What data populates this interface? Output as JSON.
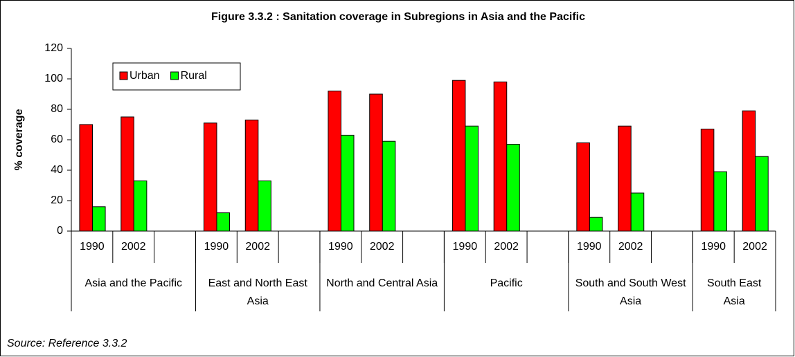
{
  "chart_data": {
    "type": "bar",
    "title": "Figure 3.3.2 : Sanitation coverage in Subregions in Asia and the Pacific",
    "ylabel": "% coverage",
    "source": "Source: Reference 3.3.2",
    "categories": [
      "1990",
      "2002",
      null,
      "1990",
      "2002",
      null,
      "1990",
      "2002",
      null,
      "1990",
      "2002",
      null,
      "1990",
      "2002",
      null,
      "1990",
      "2002"
    ],
    "groups": [
      "Asia and the Pacific",
      "East and North East Asia",
      "North and Central Asia",
      "Pacific",
      "South and South West Asia",
      "South East Asia"
    ],
    "series": [
      {
        "name": "Urban",
        "color": "#ff0000",
        "values": [
          70,
          75,
          null,
          71,
          73,
          null,
          92,
          90,
          null,
          99,
          98,
          null,
          58,
          69,
          null,
          67,
          79
        ]
      },
      {
        "name": "Rural",
        "color": "#00ff00",
        "values": [
          16,
          33,
          null,
          12,
          33,
          null,
          63,
          59,
          null,
          69,
          57,
          null,
          9,
          25,
          null,
          39,
          49
        ]
      }
    ],
    "ylim": [
      0,
      120
    ],
    "yticks": [
      0,
      20,
      40,
      60,
      80,
      100,
      120
    ],
    "grid": false,
    "legend": "top-left"
  }
}
